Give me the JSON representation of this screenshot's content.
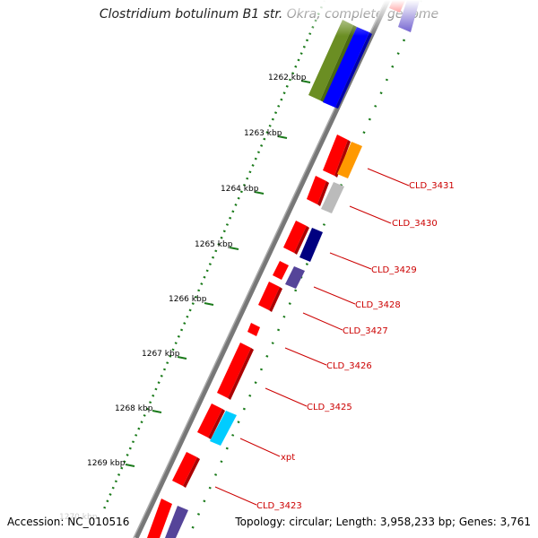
{
  "title": "Clostridium botulinum B1 str. Okra, complete genome",
  "footer": {
    "accession": "Accession: NC_010516",
    "summary": "Topology: circular; Length: 3,958,233 bp; Genes: 3,761"
  },
  "ticks": [
    "1262 kbp",
    "1263 kbp",
    "1264 kbp",
    "1265 kbp",
    "1266 kbp",
    "1267 kbp",
    "1268 kbp",
    "1269 kbp",
    "1270 kbp"
  ],
  "gene_labels": [
    "CLD_3431",
    "CLD_3430",
    "CLD_3429",
    "CLD_3428",
    "CLD_3427",
    "CLD_3426",
    "CLD_3425",
    "xpt",
    "CLD_3423"
  ],
  "colors": {
    "gene_red": "#ff0000",
    "orange": "#ff9900",
    "grey": "#bbbbbb",
    "navy": "#000080",
    "slate": "#554499",
    "cyan": "#00ccff",
    "olive": "#6b8e23",
    "blue": "#0000ff",
    "backbone": "#777777",
    "tick_green": "#1a7a1a",
    "label_red": "#cc0000"
  }
}
